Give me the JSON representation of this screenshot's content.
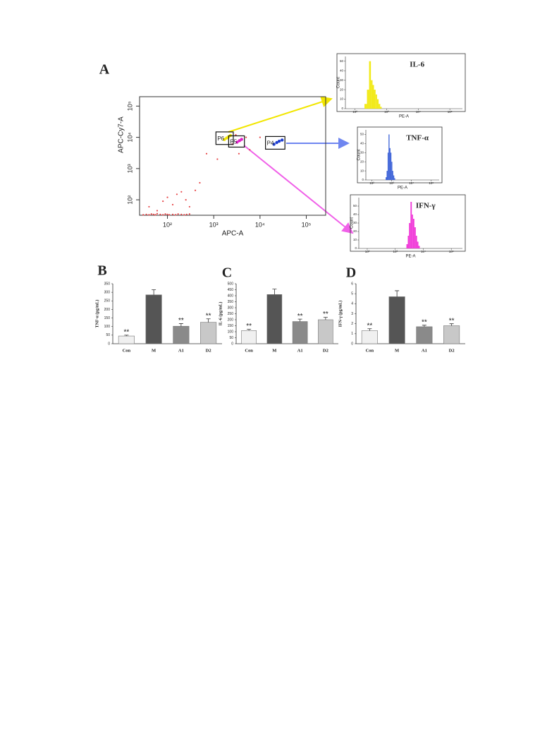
{
  "chart_data": [
    {
      "type": "scatter",
      "panel": "A",
      "xlabel": "APC-A",
      "ylabel": "APC-Cy7-A",
      "xscale": "log",
      "yscale": "log",
      "xlim": [
        25,
        262144
      ],
      "ylim": [
        32,
        200000
      ],
      "xticks": [
        {
          "value": 100,
          "label": "10²"
        },
        {
          "value": 1000,
          "label": "10³"
        },
        {
          "value": 10000,
          "label": "10⁴"
        },
        {
          "value": 100000,
          "label": "10⁵"
        }
      ],
      "yticks": [
        {
          "value": 100,
          "label": "10²"
        },
        {
          "value": 1000,
          "label": "10³"
        },
        {
          "value": 10000,
          "label": "10⁴"
        },
        {
          "value": 100000,
          "label": "10⁵"
        }
      ],
      "series": [
        {
          "color": "#e8484a",
          "x": [
            30,
            35,
            40,
            45,
            50,
            55,
            60,
            70,
            80,
            90,
            100,
            110,
            130,
            150,
            170,
            200,
            230,
            260,
            300,
            40,
            60,
            80,
            100,
            130,
            160,
            200,
            250,
            300,
            400,
            500,
            700,
            1200,
            2500,
            3000,
            5000,
            6000,
            10000,
            3500
          ],
          "y": [
            33,
            34,
            33,
            35,
            34,
            33,
            36,
            34,
            33,
            35,
            34,
            33,
            34,
            33,
            35,
            34,
            33,
            34,
            35,
            60,
            45,
            90,
            120,
            70,
            150,
            180,
            100,
            60,
            200,
            350,
            3000,
            2000,
            6000,
            12000,
            10000,
            4000,
            10000,
            3000
          ]
        },
        {
          "name": "P6",
          "color": "#f2e600",
          "x": [
            1700,
            1900,
            2100,
            2300
          ],
          "y": [
            8500,
            9500,
            10500,
            11500
          ]
        },
        {
          "name": "P5",
          "color": "#e020c8",
          "x": [
            3200,
            3600,
            4000
          ],
          "y": [
            7000,
            7800,
            8600
          ]
        },
        {
          "name": "P4",
          "color": "#1f3fd0",
          "x": [
            20000,
            23000,
            26000,
            30000
          ],
          "y": [
            6000,
            6800,
            7500,
            8200
          ]
        }
      ]
    },
    {
      "type": "histogram",
      "title": "IL-6",
      "xlabel": "PE-A",
      "ylabel": "Count",
      "xscale": "log",
      "color": "#f2ea1a",
      "xlim": [
        50,
        250000
      ],
      "ylim": [
        0,
        55
      ],
      "xticks": [
        {
          "value": 100,
          "label": "10²"
        },
        {
          "value": 1000,
          "label": "10³"
        },
        {
          "value": 10000,
          "label": "10⁴"
        },
        {
          "value": 100000,
          "label": "10⁵"
        }
      ],
      "yticks": [
        0,
        10,
        20,
        30,
        40,
        50
      ],
      "bins": [
        200,
        240,
        280,
        320,
        360,
        400,
        450,
        500,
        560,
        630,
        700
      ],
      "counts": [
        5,
        20,
        50,
        30,
        25,
        20,
        15,
        10,
        5,
        2
      ]
    },
    {
      "type": "histogram",
      "title": "TNF-α",
      "xlabel": "PE-A",
      "ylabel": "Count",
      "xscale": "log",
      "color": "#3c62d8",
      "xlim": [
        50,
        250000
      ],
      "ylim": [
        0,
        55
      ],
      "xticks": [
        {
          "value": 100,
          "label": "10²"
        },
        {
          "value": 1000,
          "label": "10³"
        },
        {
          "value": 10000,
          "label": "10⁴"
        },
        {
          "value": 100000,
          "label": "10⁵"
        }
      ],
      "yticks": [
        0,
        10,
        20,
        30,
        40,
        50
      ],
      "bins": [
        500,
        560,
        630,
        700,
        780,
        870,
        970,
        1080,
        1200,
        1350,
        1500
      ],
      "counts": [
        3,
        10,
        30,
        50,
        35,
        30,
        20,
        10,
        5,
        2
      ]
    },
    {
      "type": "histogram",
      "title": "IFN-γ",
      "xlabel": "PE-A",
      "ylabel": "Count",
      "xscale": "log",
      "color": "#f03ad8",
      "xlim": [
        50,
        250000
      ],
      "ylim": [
        0,
        60
      ],
      "xticks": [
        {
          "value": 100,
          "label": "10²"
        },
        {
          "value": 1000,
          "label": "10³"
        },
        {
          "value": 10000,
          "label": "10⁴"
        },
        {
          "value": 100000,
          "label": "10⁵"
        }
      ],
      "yticks": [
        0,
        10,
        20,
        30,
        40,
        50
      ],
      "bins": [
        2500,
        2800,
        3100,
        3500,
        3900,
        4300,
        4800,
        5400,
        6000,
        6700,
        7500
      ],
      "counts": [
        5,
        15,
        30,
        55,
        40,
        35,
        25,
        15,
        8,
        3
      ]
    },
    {
      "type": "bar",
      "panel": "B",
      "ylabel": "TNF-α (pg/mL)",
      "categories": [
        "Con",
        "M",
        "A1",
        "D2"
      ],
      "values": [
        45,
        285,
        102,
        125
      ],
      "errors": [
        5,
        30,
        15,
        20
      ],
      "significance": [
        "**",
        null,
        "**",
        "**"
      ],
      "colors": [
        "#f0f0f0",
        "#555555",
        "#8a8a8a",
        "#c8c8c8"
      ],
      "ylim": [
        0,
        350
      ],
      "yticks": [
        0,
        50,
        100,
        150,
        200,
        250,
        300,
        350
      ]
    },
    {
      "type": "bar",
      "panel": "C",
      "ylabel": "IL-6 (pg/mL)",
      "categories": [
        "Con",
        "M",
        "A1",
        "D2"
      ],
      "values": [
        110,
        410,
        185,
        200
      ],
      "errors": [
        10,
        45,
        20,
        20
      ],
      "significance": [
        "**",
        null,
        "**",
        "**"
      ],
      "colors": [
        "#f0f0f0",
        "#555555",
        "#8a8a8a",
        "#c8c8c8"
      ],
      "ylim": [
        0,
        500
      ],
      "yticks": [
        0,
        50,
        100,
        150,
        200,
        250,
        300,
        350,
        400,
        450,
        500
      ]
    },
    {
      "type": "bar",
      "panel": "D",
      "ylabel": "IFN-γ (pg/mL)",
      "categories": [
        "Con",
        "M",
        "A1",
        "D2"
      ],
      "values": [
        1.3,
        4.7,
        1.7,
        1.8
      ],
      "errors": [
        0.2,
        0.6,
        0.15,
        0.2
      ],
      "significance": [
        "**",
        null,
        "**",
        "**"
      ],
      "colors": [
        "#f0f0f0",
        "#555555",
        "#8a8a8a",
        "#c8c8c8"
      ],
      "ylim": [
        0,
        6
      ],
      "yticks": [
        0,
        1,
        2,
        3,
        4,
        5,
        6
      ]
    }
  ]
}
